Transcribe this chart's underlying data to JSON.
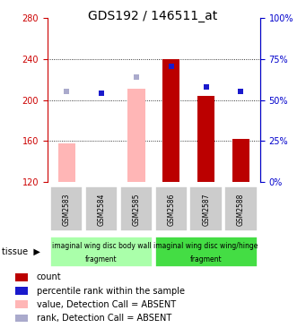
{
  "title": "GDS192 / 146511_at",
  "samples": [
    "GSM2583",
    "GSM2584",
    "GSM2585",
    "GSM2586",
    "GSM2587",
    "GSM2588"
  ],
  "ylim_left": [
    120,
    280
  ],
  "ylim_right": [
    0,
    100
  ],
  "yticks_left": [
    120,
    160,
    200,
    240,
    280
  ],
  "yticks_right": [
    0,
    25,
    50,
    75,
    100
  ],
  "red_bar_bottom": 120,
  "red_bar_tops": [
    null,
    null,
    null,
    240,
    204,
    162
  ],
  "pink_bar_tops": [
    158,
    120,
    211,
    null,
    null,
    null
  ],
  "blue_sq_values": [
    null,
    207,
    null,
    233,
    213,
    208
  ],
  "lightblue_sq_values": [
    208,
    null,
    222,
    null,
    null,
    null
  ],
  "tissues": [
    {
      "label": "imaginal wing disc body wall\nfragment",
      "samples": [
        0,
        1,
        2
      ]
    },
    {
      "label": "imaginal wing disc wing/hinge\nfragment",
      "samples": [
        3,
        4,
        5
      ]
    }
  ],
  "bar_width": 0.5,
  "colors": {
    "red": "#bb0000",
    "pink": "#ffb6b6",
    "blue": "#1a1acc",
    "lightblue": "#aaaacc",
    "axis_left": "#cc0000",
    "axis_right": "#0000cc",
    "bg_grey": "#cccccc",
    "tissue_light": "#aaffaa",
    "tissue_dark": "#44dd44",
    "grid_dotted": "#000000"
  },
  "title_fontsize": 10,
  "tick_fontsize": 7,
  "sample_fontsize": 5.5,
  "tissue_fontsize": 5.5,
  "legend_fontsize": 7,
  "legend_items": [
    {
      "label": "count"
    },
    {
      "label": "percentile rank within the sample"
    },
    {
      "label": "value, Detection Call = ABSENT"
    },
    {
      "label": "rank, Detection Call = ABSENT"
    }
  ]
}
